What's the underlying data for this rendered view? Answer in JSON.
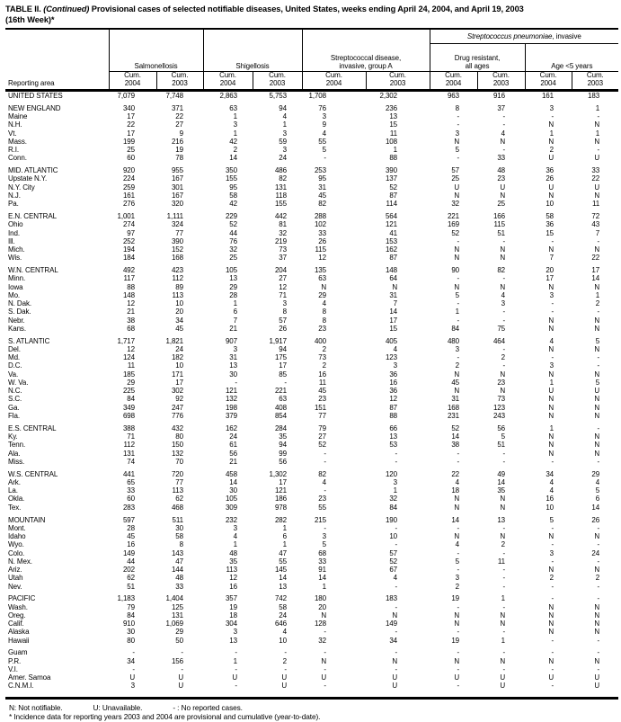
{
  "title": {
    "label": "TABLE II.",
    "continued": "(Continued)",
    "main": "Provisional cases of selected notifiable diseases, United States, weeks ending April 24, 2004, and April 19, 2003",
    "line2": "(16th Week)*"
  },
  "table": {
    "reporting_area_label": "Reporting area",
    "cum_label": "Cum.",
    "years": [
      "2004",
      "2003"
    ],
    "groups": {
      "salmonellosis": "Salmonellosis",
      "shigellosis": "Shigellosis",
      "strep_a_line1": "Streptococcal disease,",
      "strep_a_line2": "invasive, group A",
      "pneumo_italic": "Streptococcus pneumoniae",
      "pneumo_rest": ", invasive",
      "drug_resistant_line1": "Drug resistant,",
      "drug_resistant_line2": "all ages",
      "age_under5": "Age <5 years"
    },
    "sections": [
      {
        "rows": [
          [
            "UNITED STATES",
            "7,079",
            "7,748",
            "2,863",
            "5,753",
            "1,708",
            "2,302",
            "963",
            "916",
            "161",
            "183"
          ]
        ]
      },
      {
        "rows": [
          [
            "NEW ENGLAND",
            "340",
            "371",
            "63",
            "94",
            "76",
            "236",
            "8",
            "37",
            "3",
            "1"
          ],
          [
            "Maine",
            "17",
            "22",
            "1",
            "4",
            "3",
            "13",
            "-",
            "-",
            "-",
            "-"
          ],
          [
            "N.H.",
            "22",
            "27",
            "3",
            "1",
            "9",
            "15",
            "-",
            "-",
            "N",
            "N"
          ],
          [
            "Vt.",
            "17",
            "9",
            "1",
            "3",
            "4",
            "11",
            "3",
            "4",
            "1",
            "1"
          ],
          [
            "Mass.",
            "199",
            "216",
            "42",
            "59",
            "55",
            "108",
            "N",
            "N",
            "N",
            "N"
          ],
          [
            "R.I.",
            "25",
            "19",
            "2",
            "3",
            "5",
            "1",
            "5",
            "-",
            "2",
            "-"
          ],
          [
            "Conn.",
            "60",
            "78",
            "14",
            "24",
            "-",
            "88",
            "-",
            "33",
            "U",
            "U"
          ]
        ]
      },
      {
        "rows": [
          [
            "MID. ATLANTIC",
            "920",
            "955",
            "350",
            "486",
            "253",
            "390",
            "57",
            "48",
            "36",
            "33"
          ],
          [
            "Upstate N.Y.",
            "224",
            "167",
            "155",
            "82",
            "95",
            "137",
            "25",
            "23",
            "26",
            "22"
          ],
          [
            "N.Y. City",
            "259",
            "301",
            "95",
            "131",
            "31",
            "52",
            "U",
            "U",
            "U",
            "U"
          ],
          [
            "N.J.",
            "161",
            "167",
            "58",
            "118",
            "45",
            "87",
            "N",
            "N",
            "N",
            "N"
          ],
          [
            "Pa.",
            "276",
            "320",
            "42",
            "155",
            "82",
            "114",
            "32",
            "25",
            "10",
            "11"
          ]
        ]
      },
      {
        "rows": [
          [
            "E.N. CENTRAL",
            "1,001",
            "1,111",
            "229",
            "442",
            "288",
            "564",
            "221",
            "166",
            "58",
            "72"
          ],
          [
            "Ohio",
            "274",
            "324",
            "52",
            "81",
            "102",
            "121",
            "169",
            "115",
            "36",
            "43"
          ],
          [
            "Ind.",
            "97",
            "77",
            "44",
            "32",
            "33",
            "41",
            "52",
            "51",
            "15",
            "7"
          ],
          [
            "Ill.",
            "252",
            "390",
            "76",
            "219",
            "26",
            "153",
            "-",
            "-",
            "-",
            "-"
          ],
          [
            "Mich.",
            "194",
            "152",
            "32",
            "73",
            "115",
            "162",
            "N",
            "N",
            "N",
            "N"
          ],
          [
            "Wis.",
            "184",
            "168",
            "25",
            "37",
            "12",
            "87",
            "N",
            "N",
            "7",
            "22"
          ]
        ]
      },
      {
        "rows": [
          [
            "W.N. CENTRAL",
            "492",
            "423",
            "105",
            "204",
            "135",
            "148",
            "90",
            "82",
            "20",
            "17"
          ],
          [
            "Minn.",
            "117",
            "112",
            "13",
            "27",
            "63",
            "64",
            "-",
            "-",
            "17",
            "14"
          ],
          [
            "Iowa",
            "88",
            "89",
            "29",
            "12",
            "N",
            "N",
            "N",
            "N",
            "N",
            "N"
          ],
          [
            "Mo.",
            "148",
            "113",
            "28",
            "71",
            "29",
            "31",
            "5",
            "4",
            "3",
            "1"
          ],
          [
            "N. Dak.",
            "12",
            "10",
            "1",
            "3",
            "4",
            "7",
            "-",
            "3",
            "-",
            "2"
          ],
          [
            "S. Dak.",
            "21",
            "20",
            "6",
            "8",
            "8",
            "14",
            "1",
            "-",
            "-",
            "-"
          ],
          [
            "Nebr.",
            "38",
            "34",
            "7",
            "57",
            "8",
            "17",
            "-",
            "-",
            "N",
            "N"
          ],
          [
            "Kans.",
            "68",
            "45",
            "21",
            "26",
            "23",
            "15",
            "84",
            "75",
            "N",
            "N"
          ]
        ]
      },
      {
        "rows": [
          [
            "S. ATLANTIC",
            "1,717",
            "1,821",
            "907",
            "1,917",
            "400",
            "405",
            "480",
            "464",
            "4",
            "5"
          ],
          [
            "Del.",
            "12",
            "24",
            "3",
            "94",
            "2",
            "4",
            "3",
            "-",
            "N",
            "N"
          ],
          [
            "Md.",
            "124",
            "182",
            "31",
            "175",
            "73",
            "123",
            "-",
            "2",
            "-",
            "-"
          ],
          [
            "D.C.",
            "11",
            "10",
            "13",
            "17",
            "2",
            "3",
            "2",
            "-",
            "3",
            "-"
          ],
          [
            "Va.",
            "185",
            "171",
            "30",
            "85",
            "16",
            "36",
            "N",
            "N",
            "N",
            "N"
          ],
          [
            "W. Va.",
            "29",
            "17",
            "-",
            "-",
            "11",
            "16",
            "45",
            "23",
            "1",
            "5"
          ],
          [
            "N.C.",
            "225",
            "302",
            "121",
            "221",
            "45",
            "36",
            "N",
            "N",
            "U",
            "U"
          ],
          [
            "S.C.",
            "84",
            "92",
            "132",
            "63",
            "23",
            "12",
            "31",
            "73",
            "N",
            "N"
          ],
          [
            "Ga.",
            "349",
            "247",
            "198",
            "408",
            "151",
            "87",
            "168",
            "123",
            "N",
            "N"
          ],
          [
            "Fla.",
            "698",
            "776",
            "379",
            "854",
            "77",
            "88",
            "231",
            "243",
            "N",
            "N"
          ]
        ]
      },
      {
        "rows": [
          [
            "E.S. CENTRAL",
            "388",
            "432",
            "162",
            "284",
            "79",
            "66",
            "52",
            "56",
            "1",
            "-"
          ],
          [
            "Ky.",
            "71",
            "80",
            "24",
            "35",
            "27",
            "13",
            "14",
            "5",
            "N",
            "N"
          ],
          [
            "Tenn.",
            "112",
            "150",
            "61",
            "94",
            "52",
            "53",
            "38",
            "51",
            "N",
            "N"
          ],
          [
            "Ala.",
            "131",
            "132",
            "56",
            "99",
            "-",
            "-",
            "-",
            "-",
            "N",
            "N"
          ],
          [
            "Miss.",
            "74",
            "70",
            "21",
            "56",
            "-",
            "-",
            "-",
            "-",
            "-",
            "-"
          ]
        ]
      },
      {
        "rows": [
          [
            "W.S. CENTRAL",
            "441",
            "720",
            "458",
            "1,302",
            "82",
            "120",
            "22",
            "49",
            "34",
            "29"
          ],
          [
            "Ark.",
            "65",
            "77",
            "14",
            "17",
            "4",
            "3",
            "4",
            "14",
            "4",
            "4"
          ],
          [
            "La.",
            "33",
            "113",
            "30",
            "121",
            "-",
            "1",
            "18",
            "35",
            "4",
            "5"
          ],
          [
            "Okla.",
            "60",
            "62",
            "105",
            "186",
            "23",
            "32",
            "N",
            "N",
            "16",
            "6"
          ],
          [
            "Tex.",
            "283",
            "468",
            "309",
            "978",
            "55",
            "84",
            "N",
            "N",
            "10",
            "14"
          ]
        ]
      },
      {
        "rows": [
          [
            "MOUNTAIN",
            "597",
            "511",
            "232",
            "282",
            "215",
            "190",
            "14",
            "13",
            "5",
            "26"
          ],
          [
            "Mont.",
            "28",
            "30",
            "3",
            "1",
            "-",
            "-",
            "-",
            "-",
            "-",
            "-"
          ],
          [
            "Idaho",
            "45",
            "58",
            "4",
            "6",
            "3",
            "10",
            "N",
            "N",
            "N",
            "N"
          ],
          [
            "Wyo.",
            "16",
            "8",
            "1",
            "1",
            "5",
            "-",
            "4",
            "2",
            "-",
            "-"
          ],
          [
            "Colo.",
            "149",
            "143",
            "48",
            "47",
            "68",
            "57",
            "-",
            "-",
            "3",
            "24"
          ],
          [
            "N. Mex.",
            "44",
            "47",
            "35",
            "55",
            "33",
            "52",
            "5",
            "11",
            "-",
            "-"
          ],
          [
            "Ariz.",
            "202",
            "144",
            "113",
            "145",
            "91",
            "67",
            "-",
            "-",
            "N",
            "N"
          ],
          [
            "Utah",
            "62",
            "48",
            "12",
            "14",
            "14",
            "4",
            "3",
            "-",
            "2",
            "2"
          ],
          [
            "Nev.",
            "51",
            "33",
            "16",
            "13",
            "1",
            "-",
            "2",
            "-",
            "-",
            "-"
          ]
        ]
      },
      {
        "rows": [
          [
            "PACIFIC",
            "1,183",
            "1,404",
            "357",
            "742",
            "180",
            "183",
            "19",
            "1",
            "-",
            "-"
          ],
          [
            "Wash.",
            "79",
            "125",
            "19",
            "58",
            "20",
            "-",
            "-",
            "-",
            "N",
            "N"
          ],
          [
            "Oreg.",
            "84",
            "131",
            "18",
            "24",
            "N",
            "N",
            "N",
            "N",
            "N",
            "N"
          ],
          [
            "Calif.",
            "910",
            "1,069",
            "304",
            "646",
            "128",
            "149",
            "N",
            "N",
            "N",
            "N"
          ],
          [
            "Alaska",
            "30",
            "29",
            "3",
            "4",
            "-",
            "-",
            "-",
            "-",
            "N",
            "N"
          ],
          [
            "Hawaii",
            "80",
            "50",
            "13",
            "10",
            "32",
            "34",
            "19",
            "1",
            "-",
            "-"
          ]
        ]
      },
      {
        "rows": [
          [
            "Guam",
            "-",
            "-",
            "-",
            "-",
            "-",
            "-",
            "-",
            "-",
            "-",
            "-"
          ],
          [
            "P.R.",
            "34",
            "156",
            "1",
            "2",
            "N",
            "N",
            "N",
            "N",
            "N",
            "N"
          ],
          [
            "V.I.",
            "-",
            "-",
            "-",
            "-",
            "-",
            "-",
            "-",
            "-",
            "-",
            "-"
          ],
          [
            "Amer. Samoa",
            "U",
            "U",
            "U",
            "U",
            "U",
            "U",
            "U",
            "U",
            "U",
            "U"
          ],
          [
            "C.N.M.I.",
            "3",
            "U",
            "-",
            "U",
            "-",
            "U",
            "-",
            "U",
            "-",
            "U"
          ]
        ]
      }
    ]
  },
  "footnotes": {
    "n": "N: Not notifiable.",
    "u": "U: Unavailable.",
    "dash": "- : No reported cases.",
    "incidence": "* Incidence data for reporting years 2003 and 2004 are provisional and cumulative (year-to-date)."
  }
}
